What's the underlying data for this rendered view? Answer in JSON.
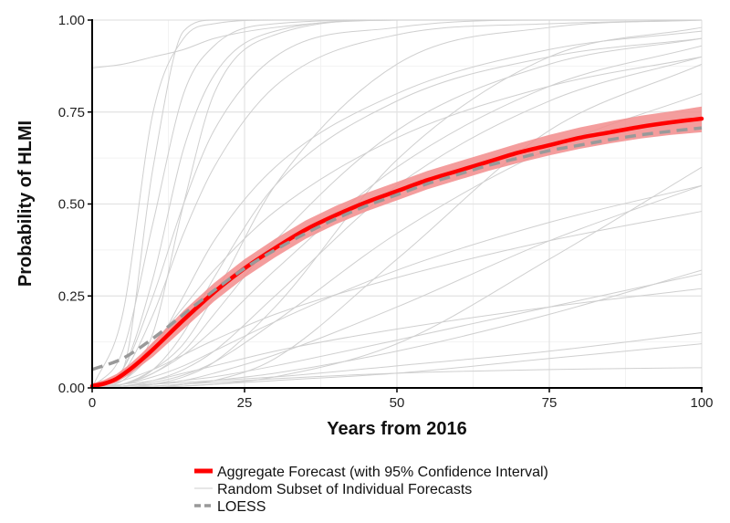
{
  "chart_data": {
    "type": "line",
    "title": "",
    "xlabel": "Years from 2016",
    "ylabel": "Probability of HLMI",
    "xlim": [
      0,
      100
    ],
    "ylim": [
      0,
      1
    ],
    "x_ticks": [
      0,
      25,
      50,
      75,
      100
    ],
    "x_tick_labels": [
      "0",
      "25",
      "50",
      "75",
      "100"
    ],
    "y_ticks": [
      0,
      0.25,
      0.5,
      0.75,
      1.0
    ],
    "y_tick_labels": [
      "0.00",
      "0.25",
      "0.50",
      "0.75",
      "1.00"
    ],
    "grid": true,
    "legend_position": "bottom",
    "colors": {
      "aggregate": "#ff0000",
      "ci_band": "#f28c8c",
      "individual": "#cfcfcf",
      "loess": "#999999"
    },
    "series": [
      {
        "name": "Aggregate Forecast (with 95% Confidence Interval)",
        "style": "solid",
        "x": [
          0,
          2,
          4,
          6,
          8,
          10,
          15,
          20,
          25,
          30,
          35,
          40,
          45,
          50,
          55,
          60,
          65,
          70,
          75,
          80,
          85,
          90,
          95,
          100
        ],
        "y": [
          0.005,
          0.012,
          0.025,
          0.048,
          0.075,
          0.105,
          0.185,
          0.26,
          0.325,
          0.38,
          0.43,
          0.47,
          0.505,
          0.535,
          0.565,
          0.59,
          0.615,
          0.64,
          0.66,
          0.68,
          0.695,
          0.71,
          0.722,
          0.732
        ],
        "ci_lower": [
          0.0,
          0.005,
          0.015,
          0.035,
          0.06,
          0.085,
          0.16,
          0.235,
          0.3,
          0.355,
          0.405,
          0.445,
          0.48,
          0.51,
          0.54,
          0.565,
          0.59,
          0.612,
          0.632,
          0.65,
          0.665,
          0.678,
          0.688,
          0.695
        ],
        "ci_upper": [
          0.012,
          0.022,
          0.038,
          0.062,
          0.092,
          0.125,
          0.21,
          0.285,
          0.35,
          0.405,
          0.455,
          0.495,
          0.53,
          0.56,
          0.59,
          0.615,
          0.64,
          0.665,
          0.688,
          0.708,
          0.725,
          0.74,
          0.752,
          0.765
        ]
      },
      {
        "name": "Random Subset of Individual Forecasts",
        "style": "thin",
        "curves": [
          {
            "x": [
              0,
              5,
              10,
              15,
              20,
              30,
              50,
              75,
              100
            ],
            "y": [
              0.0,
              0.05,
              0.6,
              0.97,
              1.0,
              1.0,
              1.0,
              1.0,
              1.0
            ]
          },
          {
            "x": [
              0,
              5,
              10,
              15,
              20,
              30,
              50,
              75,
              100
            ],
            "y": [
              0.0,
              0.2,
              0.75,
              0.95,
              0.99,
              1.0,
              1.0,
              1.0,
              1.0
            ]
          },
          {
            "x": [
              0,
              5,
              10,
              15,
              20,
              30,
              50,
              75,
              100
            ],
            "y": [
              0.0,
              0.1,
              0.45,
              0.8,
              0.93,
              0.99,
              1.0,
              1.0,
              1.0
            ]
          },
          {
            "x": [
              0,
              5,
              10,
              15,
              20,
              30,
              50,
              75,
              100
            ],
            "y": [
              0.0,
              0.02,
              0.15,
              0.5,
              0.8,
              0.96,
              1.0,
              1.0,
              1.0
            ]
          },
          {
            "x": [
              0,
              5,
              10,
              15,
              20,
              30,
              50,
              75,
              100
            ],
            "y": [
              0.0,
              0.05,
              0.25,
              0.5,
              0.7,
              0.9,
              0.98,
              1.0,
              1.0
            ]
          },
          {
            "x": [
              0,
              5,
              10,
              15,
              20,
              30,
              50,
              75,
              100
            ],
            "y": [
              0.87,
              0.88,
              0.9,
              0.92,
              0.95,
              0.98,
              1.0,
              1.0,
              1.0
            ]
          },
          {
            "x": [
              0,
              5,
              10,
              15,
              20,
              30,
              50,
              75,
              100
            ],
            "y": [
              0.0,
              0.01,
              0.05,
              0.12,
              0.25,
              0.55,
              0.88,
              0.98,
              1.0
            ]
          },
          {
            "x": [
              0,
              5,
              10,
              15,
              20,
              30,
              50,
              75,
              100
            ],
            "y": [
              0.0,
              0.01,
              0.04,
              0.1,
              0.2,
              0.4,
              0.7,
              0.88,
              0.95
            ]
          },
          {
            "x": [
              0,
              5,
              10,
              15,
              20,
              30,
              50,
              75,
              100
            ],
            "y": [
              0.0,
              0.02,
              0.1,
              0.25,
              0.4,
              0.6,
              0.8,
              0.92,
              0.97
            ]
          },
          {
            "x": [
              0,
              5,
              10,
              15,
              20,
              30,
              50,
              75,
              100
            ],
            "y": [
              0.0,
              0.005,
              0.02,
              0.05,
              0.1,
              0.25,
              0.55,
              0.78,
              0.9
            ]
          },
          {
            "x": [
              0,
              5,
              10,
              15,
              20,
              30,
              50,
              75,
              100
            ],
            "y": [
              0.0,
              0.005,
              0.015,
              0.035,
              0.07,
              0.18,
              0.42,
              0.65,
              0.8
            ]
          },
          {
            "x": [
              0,
              5,
              10,
              15,
              20,
              30,
              50,
              75,
              100
            ],
            "y": [
              0.0,
              0.03,
              0.12,
              0.22,
              0.32,
              0.48,
              0.68,
              0.82,
              0.9
            ]
          },
          {
            "x": [
              0,
              5,
              10,
              15,
              20,
              30,
              50,
              75,
              100
            ],
            "y": [
              0.0,
              0.01,
              0.03,
              0.06,
              0.1,
              0.18,
              0.32,
              0.45,
              0.55
            ]
          },
          {
            "x": [
              0,
              5,
              10,
              15,
              20,
              30,
              50,
              75,
              100
            ],
            "y": [
              0.0,
              0.0,
              0.01,
              0.02,
              0.04,
              0.09,
              0.22,
              0.4,
              0.55
            ]
          },
          {
            "x": [
              0,
              5,
              10,
              15,
              20,
              30,
              50,
              75,
              100
            ],
            "y": [
              0.0,
              0.005,
              0.01,
              0.02,
              0.03,
              0.06,
              0.13,
              0.22,
              0.31
            ]
          },
          {
            "x": [
              0,
              5,
              10,
              15,
              20,
              30,
              50,
              75,
              100
            ],
            "y": [
              0.0,
              0.0,
              0.005,
              0.01,
              0.02,
              0.04,
              0.1,
              0.2,
              0.32
            ]
          },
          {
            "x": [
              0,
              5,
              10,
              15,
              20,
              30,
              50,
              75,
              100
            ],
            "y": [
              0.0,
              0.005,
              0.01,
              0.015,
              0.02,
              0.03,
              0.06,
              0.1,
              0.15
            ]
          },
          {
            "x": [
              0,
              5,
              10,
              15,
              20,
              30,
              50,
              75,
              100
            ],
            "y": [
              0.0,
              0.0,
              0.0,
              0.005,
              0.01,
              0.02,
              0.04,
              0.08,
              0.12
            ]
          },
          {
            "x": [
              0,
              5,
              10,
              15,
              20,
              30,
              50,
              75,
              100
            ],
            "y": [
              0.0,
              0.02,
              0.05,
              0.09,
              0.13,
              0.2,
              0.3,
              0.4,
              0.48
            ]
          },
          {
            "x": [
              0,
              5,
              10,
              15,
              20,
              30,
              50,
              75,
              100
            ],
            "y": [
              0.0,
              0.01,
              0.04,
              0.09,
              0.16,
              0.32,
              0.6,
              0.82,
              0.93
            ]
          },
          {
            "x": [
              0,
              5,
              10,
              15,
              20,
              30,
              50,
              75,
              100
            ],
            "y": [
              0.0,
              0.0,
              0.01,
              0.03,
              0.07,
              0.22,
              0.62,
              0.9,
              0.98
            ]
          },
          {
            "x": [
              0,
              5,
              10,
              15,
              20,
              30,
              50,
              75,
              100
            ],
            "y": [
              0.0,
              0.0,
              0.0,
              0.01,
              0.02,
              0.08,
              0.35,
              0.7,
              0.88
            ]
          },
          {
            "x": [
              0,
              5,
              10,
              15,
              20,
              30,
              50,
              75,
              100
            ],
            "y": [
              0.0,
              0.04,
              0.2,
              0.42,
              0.6,
              0.82,
              0.96,
              0.99,
              1.0
            ]
          },
          {
            "x": [
              0,
              5,
              10,
              15,
              20,
              30,
              50,
              75,
              100
            ],
            "y": [
              0.0,
              0.002,
              0.005,
              0.01,
              0.015,
              0.025,
              0.04,
              0.05,
              0.055
            ]
          },
          {
            "x": [
              0,
              5,
              10,
              15,
              20,
              30,
              50,
              75,
              100
            ],
            "y": [
              0.0,
              0.01,
              0.02,
              0.04,
              0.06,
              0.1,
              0.16,
              0.22,
              0.27
            ]
          },
          {
            "x": [
              0,
              5,
              10,
              15,
              20,
              30,
              50,
              75,
              100
            ],
            "y": [
              0.0,
              0.0,
              0.002,
              0.005,
              0.01,
              0.03,
              0.12,
              0.35,
              0.6
            ]
          },
          {
            "x": [
              0,
              5,
              10,
              15,
              20,
              30,
              50,
              75,
              100
            ],
            "y": [
              0.0,
              0.05,
              0.3,
              0.65,
              0.85,
              0.97,
              1.0,
              1.0,
              1.0
            ]
          },
          {
            "x": [
              0,
              5,
              10,
              15,
              20,
              30,
              50,
              75,
              100
            ],
            "y": [
              0.0,
              0.01,
              0.05,
              0.15,
              0.3,
              0.55,
              0.78,
              0.9,
              0.95
            ]
          }
        ]
      },
      {
        "name": "LOESS",
        "style": "dashed",
        "x": [
          0,
          5,
          10,
          15,
          20,
          25,
          30,
          35,
          40,
          45,
          50,
          55,
          60,
          65,
          70,
          75,
          80,
          85,
          90,
          95,
          100
        ],
        "y": [
          0.05,
          0.08,
          0.135,
          0.2,
          0.265,
          0.325,
          0.375,
          0.42,
          0.46,
          0.495,
          0.525,
          0.555,
          0.58,
          0.605,
          0.625,
          0.645,
          0.66,
          0.675,
          0.688,
          0.698,
          0.707
        ]
      }
    ]
  }
}
